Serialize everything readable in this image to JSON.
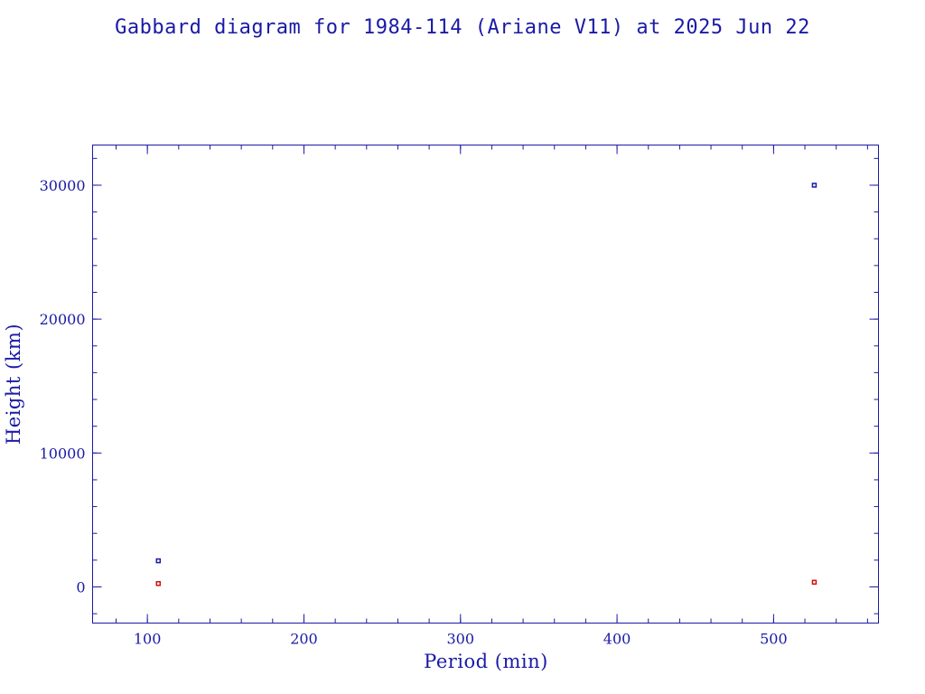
{
  "chart_data": {
    "type": "scatter",
    "title": "Gabbard diagram for 1984-114 (Ariane V11) at 2025 Jun 22",
    "xlabel": "Period (min)",
    "ylabel": "Height (km)",
    "xlim": [
      65,
      567
    ],
    "ylim": [
      -2700,
      33000
    ],
    "x_ticks": [
      100,
      200,
      300,
      400,
      500
    ],
    "x_tick_labels": [
      "100",
      "200",
      "300",
      "400",
      "500"
    ],
    "x_minor_step": 20,
    "y_ticks": [
      0,
      10000,
      20000,
      30000
    ],
    "y_tick_labels": [
      "0",
      "10000",
      "20000",
      "30000"
    ],
    "y_minor_step": 2000,
    "grid": false,
    "series": [
      {
        "color": "#1a1aa6",
        "points": [
          {
            "x": 107,
            "y": 1950
          },
          {
            "x": 526,
            "y": 30000
          }
        ]
      },
      {
        "color": "#d01010",
        "points": [
          {
            "x": 107,
            "y": 250
          },
          {
            "x": 526,
            "y": 350
          }
        ]
      }
    ]
  }
}
